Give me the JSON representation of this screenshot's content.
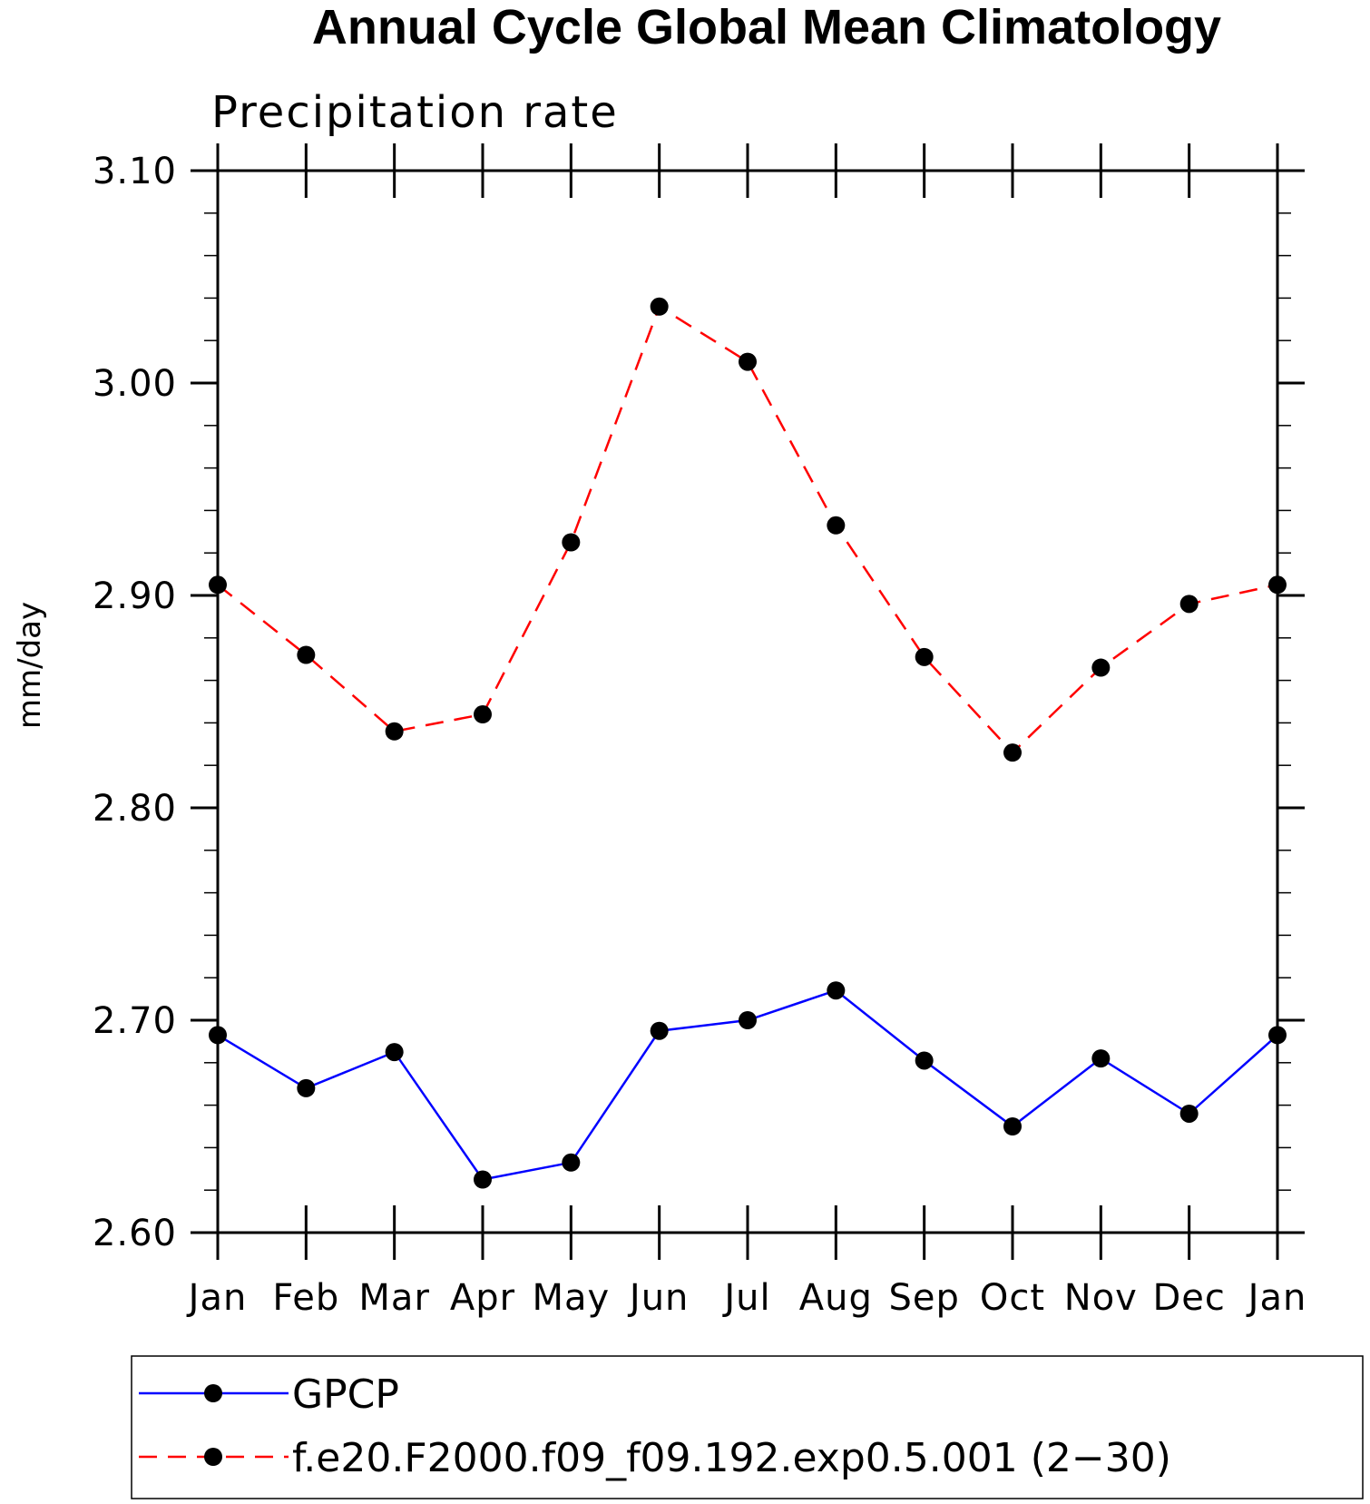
{
  "chart_data": {
    "type": "line",
    "title": "Annual Cycle Global Mean Climatology",
    "subtitle": "Precipitation rate",
    "xlabel": "",
    "ylabel": "mm/day",
    "categories": [
      "Jan",
      "Feb",
      "Mar",
      "Apr",
      "May",
      "Jun",
      "Jul",
      "Aug",
      "Sep",
      "Oct",
      "Nov",
      "Dec",
      "Jan"
    ],
    "ylim": [
      2.6,
      3.1
    ],
    "yticks": [
      2.6,
      2.7,
      2.8,
      2.9,
      3.0,
      3.1
    ],
    "ytick_labels": [
      "2.60",
      "2.70",
      "2.80",
      "2.90",
      "3.00",
      "3.10"
    ],
    "grid": false,
    "legend_position": "bottom",
    "series": [
      {
        "name": "GPCP",
        "color": "#0000ff",
        "line_style": "solid",
        "marker": "filled-circle",
        "values": [
          2.693,
          2.668,
          2.685,
          2.625,
          2.633,
          2.695,
          2.7,
          2.714,
          2.681,
          2.65,
          2.682,
          2.656,
          2.693
        ]
      },
      {
        "name": "f.e20.F2000.f09_f09.192.exp0.5.001 (2−30)",
        "color": "#ff0000",
        "line_style": "dashed",
        "marker": "filled-circle",
        "values": [
          2.905,
          2.872,
          2.836,
          2.844,
          2.925,
          3.036,
          3.01,
          2.933,
          2.871,
          2.826,
          2.866,
          2.896,
          2.905
        ]
      }
    ]
  }
}
